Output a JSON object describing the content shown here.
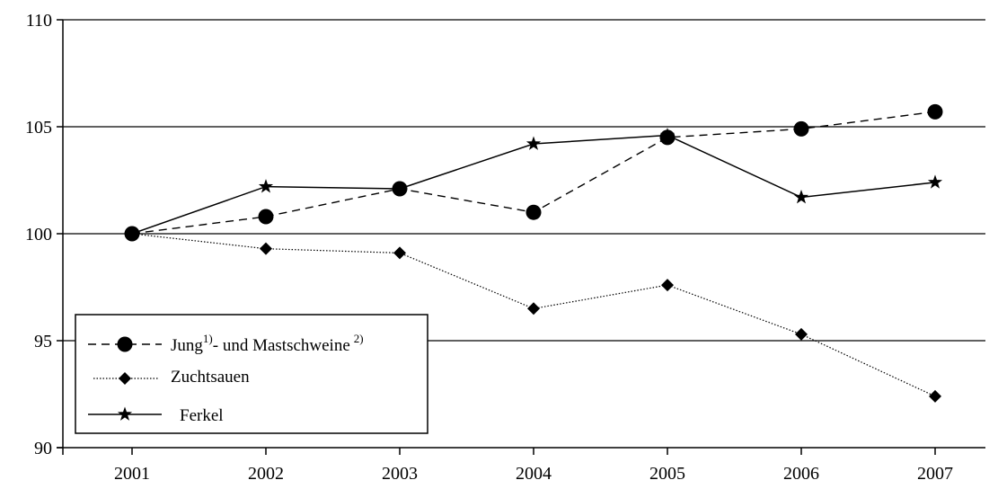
{
  "chart_data": {
    "type": "line",
    "title": "",
    "xlabel": "",
    "ylabel": "",
    "categories": [
      "2001",
      "2002",
      "2003",
      "2004",
      "2005",
      "2006",
      "2007"
    ],
    "ylim": [
      90,
      110
    ],
    "yticks": [
      90,
      95,
      100,
      105,
      110
    ],
    "grid": "horizontal",
    "legend_position": "bottom-left",
    "series": [
      {
        "key": "jung",
        "name_parts": [
          "Jung",
          "1)",
          "- und Mastschweine",
          "2)"
        ],
        "style": "dashed",
        "marker": "circle",
        "values": [
          100.0,
          100.8,
          102.1,
          101.0,
          104.5,
          104.9,
          105.7
        ]
      },
      {
        "key": "zucht",
        "name": "Zuchtsauen",
        "style": "dotted",
        "marker": "diamond",
        "values": [
          100.0,
          99.3,
          99.1,
          96.5,
          97.6,
          95.3,
          92.4
        ]
      },
      {
        "key": "ferkel",
        "name": "Ferkel",
        "style": "solid",
        "marker": "star",
        "values": [
          100.0,
          102.2,
          102.1,
          104.2,
          104.6,
          101.7,
          102.4
        ]
      }
    ]
  }
}
